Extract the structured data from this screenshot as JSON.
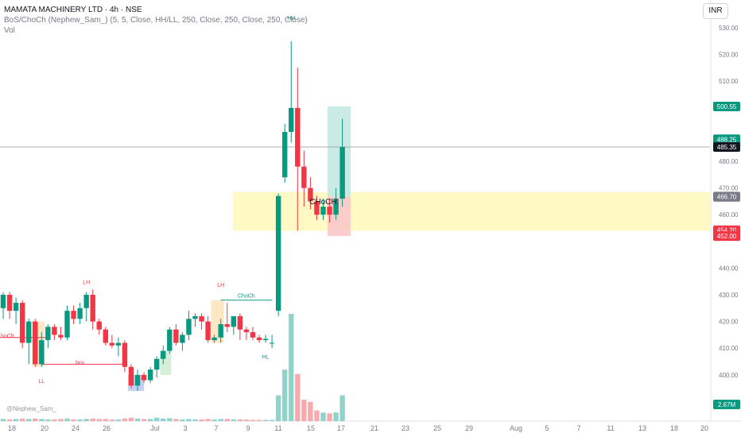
{
  "header": {
    "title": "MAMATA MACHINERY LTD · 4h · NSE",
    "indicator": "BoS/ChoCh (Nephew_Sam_) (5, 5, Close, HH/LL, 250, Close, 250, Close, 250, Close)",
    "volume_label": "Vol"
  },
  "currency": "INR",
  "watermark": "@Nephew_Sam_",
  "colors": {
    "up": "#089981",
    "down": "#f23645",
    "zone": "#fff9c4",
    "vol_up": "#8fd3cb",
    "vol_down": "#f7a9ae",
    "box": "#fde7c4",
    "box_green": "#d5efd9",
    "box_blue": "#c6cff5",
    "price_label": "#131722"
  },
  "chart_data": {
    "type": "candlestick",
    "title": "MAMATA MACHINERY LTD · 4h · NSE",
    "y_axis": {
      "ticks": [
        530,
        520,
        510,
        480,
        470,
        460,
        440,
        430,
        420,
        410,
        400
      ],
      "range": [
        392,
        535
      ]
    },
    "x_axis": {
      "ticks": [
        "18",
        "20",
        "24",
        "26",
        "Jul",
        "3",
        "7",
        "9",
        "11",
        "15",
        "17",
        "21",
        "23",
        "25",
        "29",
        "Aug",
        "5",
        "7",
        "11",
        "13",
        "18",
        "20"
      ]
    },
    "price_labels": [
      {
        "text": "500.55",
        "value": 500.55,
        "color": "#089981"
      },
      {
        "text": "488.25",
        "value": 488.25,
        "color": "#089981"
      },
      {
        "text": "485.35",
        "value": 485.35,
        "color": "#131722"
      },
      {
        "text": "466.80",
        "value": 466.8,
        "color": "#787b86"
      },
      {
        "text": "466.70",
        "value": 466.7,
        "color": "#787b86"
      },
      {
        "text": "454.20",
        "value": 454.2,
        "color": "#f23645"
      },
      {
        "text": "452.00",
        "value": 452.0,
        "color": "#f23645"
      }
    ],
    "volume_label": "2.67M",
    "candles": [
      {
        "o": 425,
        "h": 431,
        "l": 421,
        "c": 430
      },
      {
        "o": 430,
        "h": 431,
        "l": 421,
        "c": 424
      },
      {
        "o": 424,
        "h": 429,
        "l": 419,
        "c": 427
      },
      {
        "o": 427,
        "h": 428,
        "l": 410,
        "c": 412
      },
      {
        "o": 412,
        "h": 421,
        "l": 404,
        "c": 420
      },
      {
        "o": 420,
        "h": 421,
        "l": 403,
        "c": 404
      },
      {
        "o": 404,
        "h": 416,
        "l": 403,
        "c": 413
      },
      {
        "o": 413,
        "h": 419,
        "l": 410,
        "c": 418
      },
      {
        "o": 418,
        "h": 419,
        "l": 413,
        "c": 415
      },
      {
        "o": 415,
        "h": 418,
        "l": 413,
        "c": 414
      },
      {
        "o": 414,
        "h": 426,
        "l": 413,
        "c": 424
      },
      {
        "o": 424,
        "h": 426,
        "l": 419,
        "c": 421
      },
      {
        "o": 421,
        "h": 427,
        "l": 419,
        "c": 425
      },
      {
        "o": 425,
        "h": 431,
        "l": 420,
        "c": 430
      },
      {
        "o": 430,
        "h": 432,
        "l": 417,
        "c": 420
      },
      {
        "o": 420,
        "h": 421,
        "l": 415,
        "c": 417
      },
      {
        "o": 417,
        "h": 418,
        "l": 411,
        "c": 412
      },
      {
        "o": 412,
        "h": 415,
        "l": 410,
        "c": 411
      },
      {
        "o": 411,
        "h": 414,
        "l": 407,
        "c": 412
      },
      {
        "o": 412,
        "h": 413,
        "l": 401,
        "c": 403
      },
      {
        "o": 403,
        "h": 404,
        "l": 395,
        "c": 396
      },
      {
        "o": 396,
        "h": 402,
        "l": 394,
        "c": 400
      },
      {
        "o": 400,
        "h": 401,
        "l": 397,
        "c": 398
      },
      {
        "o": 398,
        "h": 403,
        "l": 397,
        "c": 402
      },
      {
        "o": 402,
        "h": 407,
        "l": 399,
        "c": 406
      },
      {
        "o": 406,
        "h": 411,
        "l": 404,
        "c": 409
      },
      {
        "o": 409,
        "h": 418,
        "l": 408,
        "c": 417
      },
      {
        "o": 417,
        "h": 419,
        "l": 411,
        "c": 412
      },
      {
        "o": 412,
        "h": 416,
        "l": 409,
        "c": 415
      },
      {
        "o": 415,
        "h": 424,
        "l": 413,
        "c": 421
      },
      {
        "o": 421,
        "h": 423,
        "l": 418,
        "c": 422
      },
      {
        "o": 422,
        "h": 423,
        "l": 417,
        "c": 420
      },
      {
        "o": 420,
        "h": 422,
        "l": 412,
        "c": 413
      },
      {
        "o": 413,
        "h": 415,
        "l": 412,
        "c": 414
      },
      {
        "o": 414,
        "h": 421,
        "l": 412,
        "c": 419
      },
      {
        "o": 419,
        "h": 427,
        "l": 416,
        "c": 418
      },
      {
        "o": 418,
        "h": 421,
        "l": 415,
        "c": 422
      },
      {
        "o": 422,
        "h": 423,
        "l": 413,
        "c": 417
      },
      {
        "o": 417,
        "h": 418,
        "l": 413,
        "c": 416
      },
      {
        "o": 416,
        "h": 418,
        "l": 413,
        "c": 414
      },
      {
        "o": 414,
        "h": 415,
        "l": 412,
        "c": 413
      },
      {
        "o": 413,
        "h": 415,
        "l": 412,
        "c": 413.5
      },
      {
        "o": 412,
        "h": 415,
        "l": 410,
        "c": 412
      },
      {
        "o": 424,
        "h": 468,
        "l": 422,
        "c": 467
      },
      {
        "o": 474,
        "h": 494,
        "l": 472,
        "c": 491
      },
      {
        "o": 491,
        "h": 525,
        "l": 487,
        "c": 500
      },
      {
        "o": 500,
        "h": 515,
        "l": 454,
        "c": 478
      },
      {
        "o": 478,
        "h": 484,
        "l": 463,
        "c": 470
      },
      {
        "o": 470,
        "h": 474,
        "l": 462,
        "c": 465
      },
      {
        "o": 465,
        "h": 467,
        "l": 458,
        "c": 460
      },
      {
        "o": 460,
        "h": 466,
        "l": 458,
        "c": 463
      },
      {
        "o": 463,
        "h": 466,
        "l": 457,
        "c": 460
      },
      {
        "o": 460,
        "h": 470,
        "l": 458,
        "c": 466
      },
      {
        "o": 466,
        "h": 496,
        "l": 463,
        "c": 485.35
      }
    ],
    "volumes": [
      0.05,
      0.04,
      0.05,
      0.06,
      0.05,
      0.06,
      0.05,
      0.04,
      0.04,
      0.05,
      0.06,
      0.04,
      0.04,
      0.05,
      0.06,
      0.05,
      0.05,
      0.04,
      0.04,
      0.06,
      0.08,
      0.06,
      0.05,
      0.05,
      0.08,
      0.06,
      0.07,
      0.05,
      0.04,
      0.05,
      0.04,
      0.04,
      0.05,
      0.04,
      0.05,
      0.05,
      0.04,
      0.04,
      0.04,
      0.03,
      0.03,
      0.03,
      0.03,
      0.6,
      1.2,
      2.5,
      1.1,
      0.5,
      0.45,
      0.25,
      0.2,
      0.18,
      0.2,
      0.6
    ],
    "labels": [
      {
        "text": "HH",
        "idx": 45,
        "price": 533,
        "color": "#089981"
      },
      {
        "text": "LH",
        "idx": 13,
        "price": 434,
        "color": "#f23645"
      },
      {
        "text": "LH",
        "idx": 34,
        "price": 433,
        "color": "#f23645"
      },
      {
        "text": "LL",
        "idx": 6,
        "price": 397,
        "color": "#f23645"
      },
      {
        "text": "HL",
        "idx": 41,
        "price": 406,
        "color": "#089981"
      },
      {
        "text": "ChoCh",
        "idx": 38,
        "price": 429,
        "color": "#089981"
      },
      {
        "text": "bos",
        "idx": 12,
        "price": 404,
        "color": "#f23645"
      },
      {
        "text": "hoCh",
        "idx": 0,
        "price": 414,
        "color": "#f23645"
      },
      {
        "text": "CHoCH",
        "idx": 50,
        "price": 464,
        "color": "#131722"
      }
    ]
  }
}
